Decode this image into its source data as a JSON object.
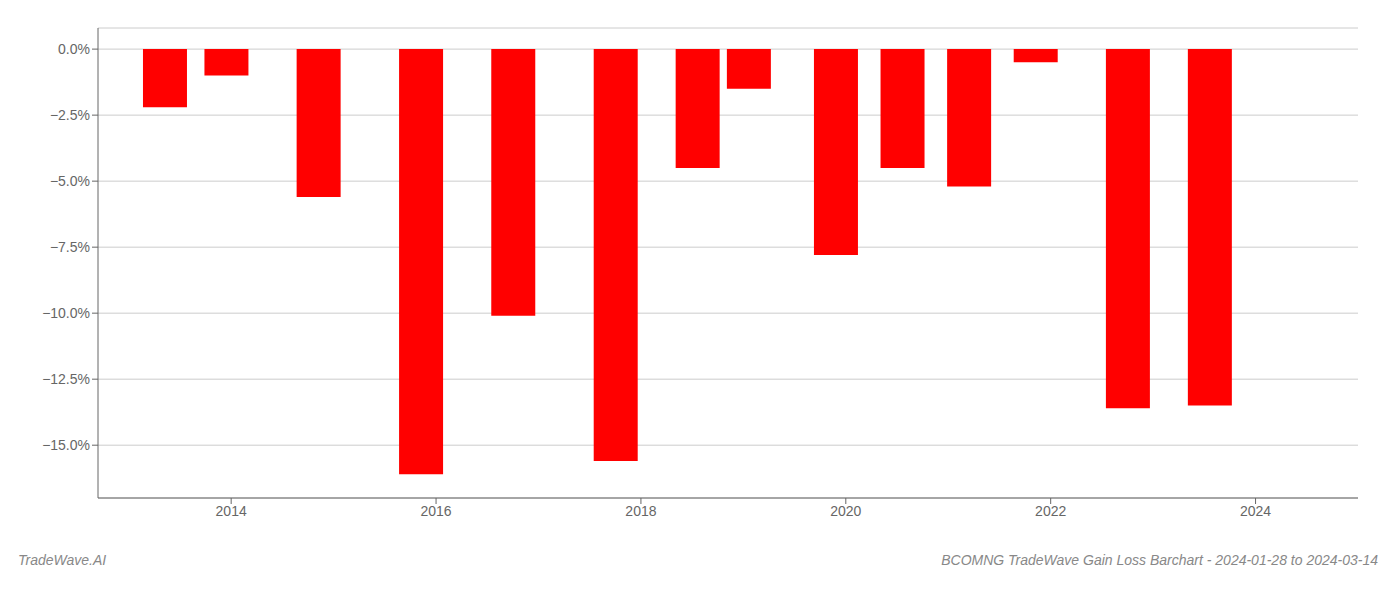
{
  "chart_data": {
    "type": "bar",
    "title": "BCOMNG TradeWave Gain Loss Barchart - 2024-01-28 to 2024-03-14",
    "annotations": [
      "TradeWave.AI"
    ],
    "x": [
      2013.35,
      2013.95,
      2014.85,
      2015.85,
      2016.75,
      2017.75,
      2018.55,
      2019.05,
      2019.9,
      2020.55,
      2021.2,
      2021.85,
      2022.75,
      2023.55
    ],
    "values": [
      -2.2,
      -1.0,
      -5.6,
      -16.1,
      -10.1,
      -15.6,
      -4.5,
      -1.5,
      -7.8,
      -4.5,
      -5.2,
      -0.5,
      -13.6,
      -13.5
    ],
    "color": "#ff0000",
    "xlim": [
      2012.7,
      2025.0
    ],
    "xticks": [
      2014,
      2016,
      2018,
      2020,
      2022,
      2024
    ],
    "ylim": [
      -17.0,
      0.8
    ],
    "yticks": [
      {
        "value": 0.0,
        "label": "0.0%"
      },
      {
        "value": -2.5,
        "label": "−2.5%"
      },
      {
        "value": -5.0,
        "label": "−5.0%"
      },
      {
        "value": -7.5,
        "label": "−7.5%"
      },
      {
        "value": -10.0,
        "label": "−10.0%"
      },
      {
        "value": -12.5,
        "label": "−12.5%"
      },
      {
        "value": -15.0,
        "label": "−15.0%"
      }
    ],
    "grid": true
  }
}
